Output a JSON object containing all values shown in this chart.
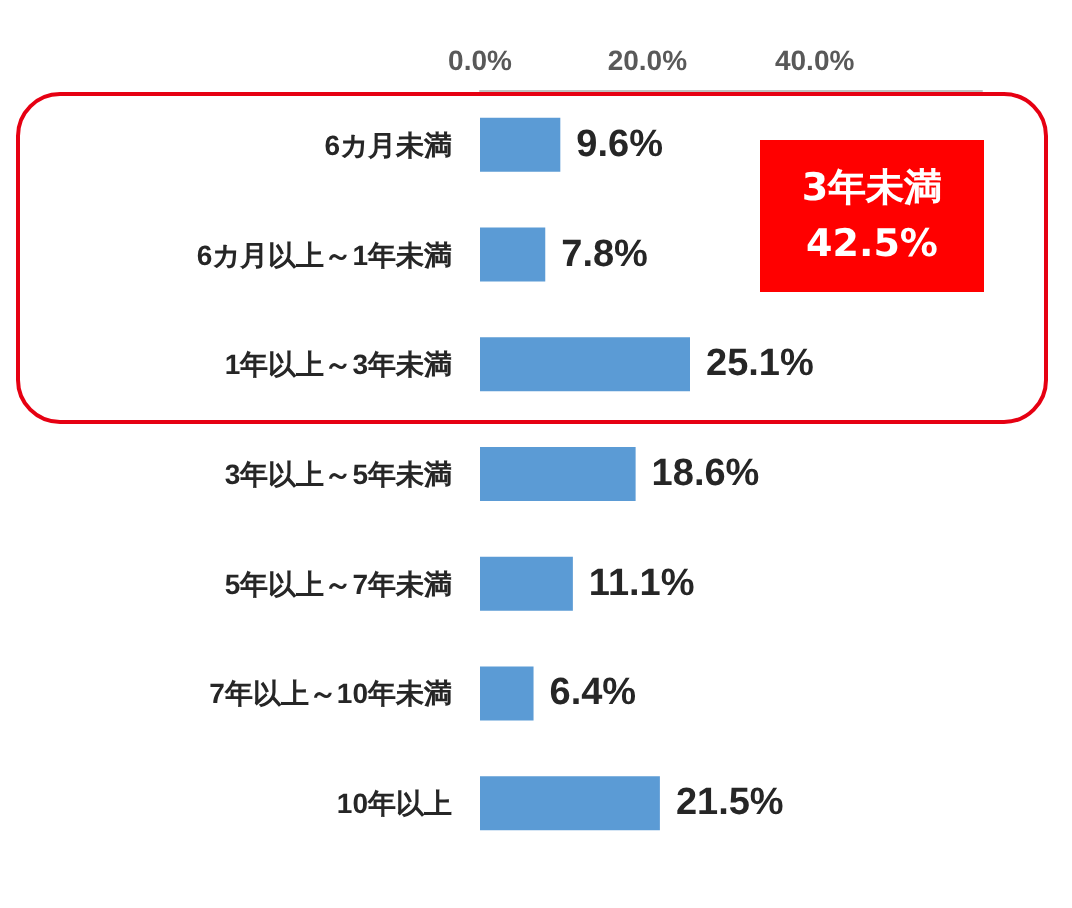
{
  "chart_data": {
    "type": "bar",
    "orientation": "horizontal",
    "categories": [
      "6カ月未満",
      "6カ月以上～1年未満",
      "1年以上～3年未満",
      "3年以上～5年未満",
      "5年以上～7年未満",
      "7年以上～10年未満",
      "10年以上"
    ],
    "values": [
      9.6,
      7.8,
      25.1,
      18.6,
      11.1,
      6.4,
      21.5
    ],
    "value_labels": [
      "9.6%",
      "7.8%",
      "25.1%",
      "18.6%",
      "11.1%",
      "6.4%",
      "21.5%"
    ],
    "color": "#5b9bd5",
    "xlim": [
      0,
      60
    ],
    "xticks": [
      {
        "value": 0,
        "label": "0.0%"
      },
      {
        "value": 20,
        "label": "20.0%"
      },
      {
        "value": 40,
        "label": "40.0%"
      }
    ],
    "grid": false,
    "annotations": [
      "3年未満\n42.5%"
    ]
  }
}
